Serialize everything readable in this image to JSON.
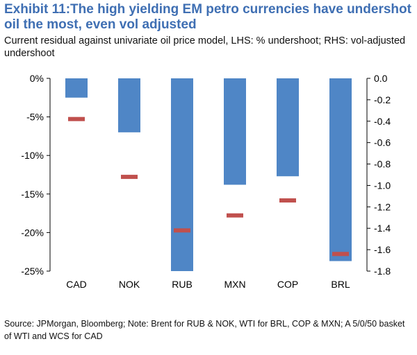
{
  "title": "Exhibit 11:The high yielding EM petro currencies have undershot oil the most, even vol adjusted",
  "subtitle": "Current residual against univariate oil price model, LHS: % undershoot; RHS: vol-adjusted undershoot",
  "source": "Source: JPMorgan, Bloomberg; Note: Brent for RUB & NOK, WTI for BRL, COP & MXN; A 5/0/50 basket of WTI and WCS for CAD",
  "chart_data": {
    "type": "bar",
    "categories": [
      "CAD",
      "NOK",
      "RUB",
      "MXN",
      "COP",
      "BRL"
    ],
    "series": [
      {
        "axis": "left",
        "mark": "bar",
        "color": "#4f86c6",
        "values": [
          -2.5,
          -7.0,
          -25.3,
          -13.8,
          -12.7,
          -23.7
        ]
      },
      {
        "axis": "right",
        "mark": "dash",
        "color": "#c0504d",
        "values": [
          -0.38,
          -0.92,
          -1.42,
          -1.28,
          -1.14,
          -1.64
        ]
      }
    ],
    "left_axis": {
      "ylim": [
        -25,
        0
      ],
      "ticks": [
        0,
        -5,
        -10,
        -15,
        -20,
        -25
      ],
      "tick_labels": [
        "0%",
        "-5%",
        "-10%",
        "-15%",
        "-20%",
        "-25%"
      ]
    },
    "right_axis": {
      "ylim": [
        -1.8,
        0
      ],
      "ticks": [
        0,
        -0.2,
        -0.4,
        -0.6,
        -0.8,
        -1.0,
        -1.2,
        -1.4,
        -1.6,
        -1.8
      ],
      "tick_labels": [
        "0.0",
        "-0.2",
        "-0.4",
        "-0.6",
        "-0.8",
        "-1.0",
        "-1.2",
        "-1.4",
        "-1.6",
        "-1.8"
      ]
    },
    "grid": false,
    "legend": false
  }
}
